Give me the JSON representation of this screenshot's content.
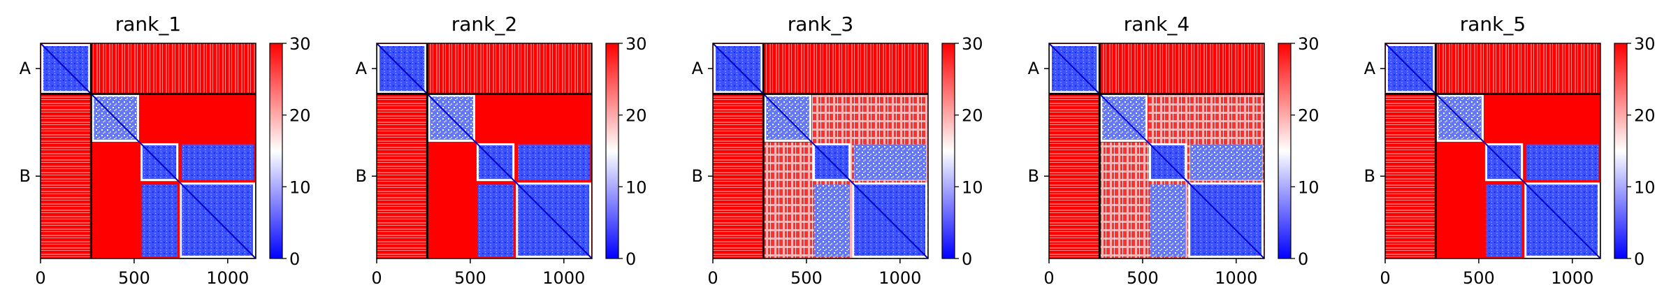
{
  "chart_data": [
    {
      "type": "heatmap",
      "title": "rank_1",
      "chains": [
        "A",
        "B"
      ],
      "boundary": 270,
      "xticks": [
        0,
        500,
        1000
      ],
      "xlim": [
        0,
        1150
      ],
      "colorbar": {
        "ticks": [
          0,
          10,
          20,
          30
        ],
        "range": [
          0,
          30
        ],
        "colors": [
          "#0000ff",
          "#ffffff",
          "#ff0000"
        ]
      },
      "blocks": [
        [
          0,
          270
        ],
        [
          270,
          530
        ],
        [
          530,
          740
        ],
        [
          740,
          1150
        ]
      ],
      "variant": "standard"
    },
    {
      "type": "heatmap",
      "title": "rank_2",
      "chains": [
        "A",
        "B"
      ],
      "boundary": 270,
      "xticks": [
        0,
        500,
        1000
      ],
      "xlim": [
        0,
        1150
      ],
      "colorbar": {
        "ticks": [
          0,
          10,
          20,
          30
        ],
        "range": [
          0,
          30
        ],
        "colors": [
          "#0000ff",
          "#ffffff",
          "#ff0000"
        ]
      },
      "blocks": [
        [
          0,
          270
        ],
        [
          270,
          530
        ],
        [
          530,
          740
        ],
        [
          740,
          1150
        ]
      ],
      "variant": "standard"
    },
    {
      "type": "heatmap",
      "title": "rank_3",
      "chains": [
        "A",
        "B"
      ],
      "boundary": 270,
      "xticks": [
        0,
        500,
        1000
      ],
      "xlim": [
        0,
        1150
      ],
      "colorbar": {
        "ticks": [
          0,
          10,
          20,
          30
        ],
        "range": [
          0,
          30
        ],
        "colors": [
          "#0000ff",
          "#ffffff",
          "#ff0000"
        ]
      },
      "blocks": [
        [
          0,
          270
        ],
        [
          270,
          530
        ],
        [
          530,
          740
        ],
        [
          740,
          1150
        ]
      ],
      "variant": "merged"
    },
    {
      "type": "heatmap",
      "title": "rank_4",
      "chains": [
        "A",
        "B"
      ],
      "boundary": 270,
      "xticks": [
        0,
        500,
        1000
      ],
      "xlim": [
        0,
        1150
      ],
      "colorbar": {
        "ticks": [
          0,
          10,
          20,
          30
        ],
        "range": [
          0,
          30
        ],
        "colors": [
          "#0000ff",
          "#ffffff",
          "#ff0000"
        ]
      },
      "blocks": [
        [
          0,
          270
        ],
        [
          270,
          530
        ],
        [
          530,
          740
        ],
        [
          740,
          1150
        ]
      ],
      "variant": "merged"
    },
    {
      "type": "heatmap",
      "title": "rank_5",
      "chains": [
        "A",
        "B"
      ],
      "boundary": 270,
      "xticks": [
        0,
        500,
        1000
      ],
      "xlim": [
        0,
        1150
      ],
      "colorbar": {
        "ticks": [
          0,
          10,
          20,
          30
        ],
        "range": [
          0,
          30
        ],
        "colors": [
          "#0000ff",
          "#ffffff",
          "#ff0000"
        ]
      },
      "blocks": [
        [
          0,
          270
        ],
        [
          270,
          530
        ],
        [
          530,
          740
        ],
        [
          740,
          1150
        ]
      ],
      "variant": "standard"
    }
  ]
}
